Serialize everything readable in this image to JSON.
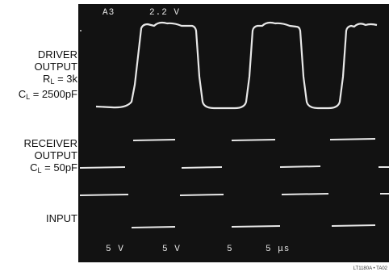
{
  "labels": {
    "driver": {
      "line1": "DRIVER",
      "line2": "OUTPUT",
      "rl_prefix": "R",
      "rl_sub": "L",
      "rl_value": " = 3k",
      "cl_prefix": "C",
      "cl_sub": "L",
      "cl_value": " = 2500pF"
    },
    "receiver": {
      "line1": "RECEIVER",
      "line2": "OUTPUT",
      "cl_prefix": "C",
      "cl_sub": "L",
      "cl_value": " = 50pF"
    },
    "input": "INPUT"
  },
  "scope": {
    "top_left": "A3",
    "top_right": "2.2 V",
    "bottom": [
      "5 V",
      "5 V",
      "5",
      "5 μs"
    ]
  },
  "caption": "LT1180A • TA02",
  "colors": {
    "screen": "#121212",
    "trace": "#e8e8e8"
  }
}
